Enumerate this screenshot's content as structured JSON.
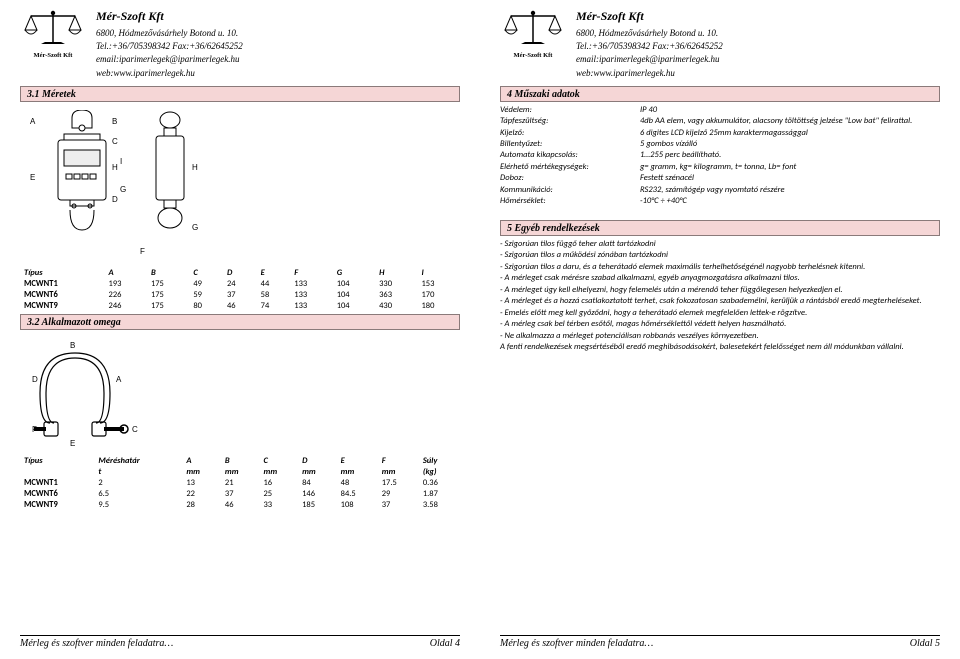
{
  "company": {
    "name": "Mér-Szoft Kft",
    "logo_text": "Mér-Szoft Kft",
    "address": "6800, Hódmezővásárhely Botond u. 10.",
    "tel": "Tel.:+36/705398342 Fax:+36/62645252",
    "email": "email:iparimerlegek@iparimerlegek.hu",
    "web": "web:www.iparimerlegek.hu"
  },
  "sections": {
    "s31": "3.1   Méretek",
    "s32": "3.2   Alkalmazott omega",
    "s4": "4   Műszaki adatok",
    "s5": "5   Egyéb rendelkezések"
  },
  "tech": [
    {
      "k": "Védelem:",
      "v": "IP 40"
    },
    {
      "k": "Tápfeszültség:",
      "v": "4db AA elem, vagy akkumulátor, alacsony töltöttség jelzése \"Low bat\" felirattal."
    },
    {
      "k": "Kijelző:",
      "v": "6 digites LCD kijelző 25mm karaktermagassággal"
    },
    {
      "k": "Billentyűzet:",
      "v": "5 gombos vízálló"
    },
    {
      "k": "Automata kikapcsolás:",
      "v": "1…255 perc beállítható."
    },
    {
      "k": "Elérhető mértékegységek:",
      "v": "g= gramm, kg= kilogramm, t= tonna, Lb= font"
    },
    {
      "k": "Doboz:",
      "v": "Festett szénacél"
    },
    {
      "k": "Kommunikáció:",
      "v": "RS232, számítógép vagy nyomtató részére"
    },
    {
      "k": "Hőmérséklet:",
      "v": "-10°C ÷ +40°C"
    }
  ],
  "rules": [
    "- Szigorúan tilos függő teher alatt tartózkodni",
    "- Szigorúan tilos a működési zónában tartózkodni",
    "- Szigorúan tilos a daru, és a teherátadó elemek maximális terhelhetőségénél nagyobb terhelésnek kitenni.",
    "- A mérleget csak mérésre szabad alkalmazni, egyéb anyagmozgatásra alkalmazni tilos.",
    "- A mérleget úgy kell elhelyezni, hogy felemelés után a mérendő teher függőlegesen helyezkedjen el.",
    "- A mérleget és a hozzá csatlakoztatott terhet, csak fokozatosan szabademélni, kerüljük a rántásból eredő megterheléseket.",
    "- Emelés előtt meg kell győződni, hogy a teherátadó elemek megfelelően lettek-e rögzítve.",
    "- A mérleg csak bel térben esőtől, magas hőmérséklettől védett helyen használható.",
    "- Ne alkalmazza a mérleget potenciálisan robbanás veszélyes környezetben.",
    "A fenti rendelkezések megsértéséből eredő meghibásodásokért, balesetekért felelősséget nem áll módunkban vállalni."
  ],
  "table1": {
    "headers": [
      "Típus",
      "A",
      "B",
      "C",
      "D",
      "E",
      "F",
      "G",
      "H",
      "I"
    ],
    "rows": [
      [
        "MCWNT1",
        "193",
        "175",
        "49",
        "24",
        "44",
        "133",
        "104",
        "330",
        "153"
      ],
      [
        "MCWNT6",
        "226",
        "175",
        "59",
        "37",
        "58",
        "133",
        "104",
        "363",
        "170"
      ],
      [
        "MCWNT9",
        "246",
        "175",
        "80",
        "46",
        "74",
        "133",
        "104",
        "430",
        "180"
      ]
    ]
  },
  "table2": {
    "headers_line1": [
      "Típus",
      "Méréshatár",
      "A",
      "B",
      "C",
      "D",
      "E",
      "F",
      "Súly"
    ],
    "headers_line2": [
      "",
      "t",
      "mm",
      "mm",
      "mm",
      "mm",
      "mm",
      "mm",
      "(kg)"
    ],
    "rows": [
      [
        "MCWNT1",
        "2",
        "13",
        "21",
        "16",
        "84",
        "48",
        "17.5",
        "0.36"
      ],
      [
        "MCWNT6",
        "6.5",
        "22",
        "37",
        "25",
        "146",
        "84.5",
        "29",
        "1.87"
      ],
      [
        "MCWNT9",
        "9.5",
        "28",
        "46",
        "33",
        "185",
        "108",
        "37",
        "3.58"
      ]
    ]
  },
  "footer": {
    "left": "Mérleg és szoftver minden feladatra…",
    "page4": "Oldal 4",
    "page5": "Oldal 5"
  },
  "colors": {
    "section_bg": "#f5d6d6",
    "section_border": "#8a7a7a"
  }
}
